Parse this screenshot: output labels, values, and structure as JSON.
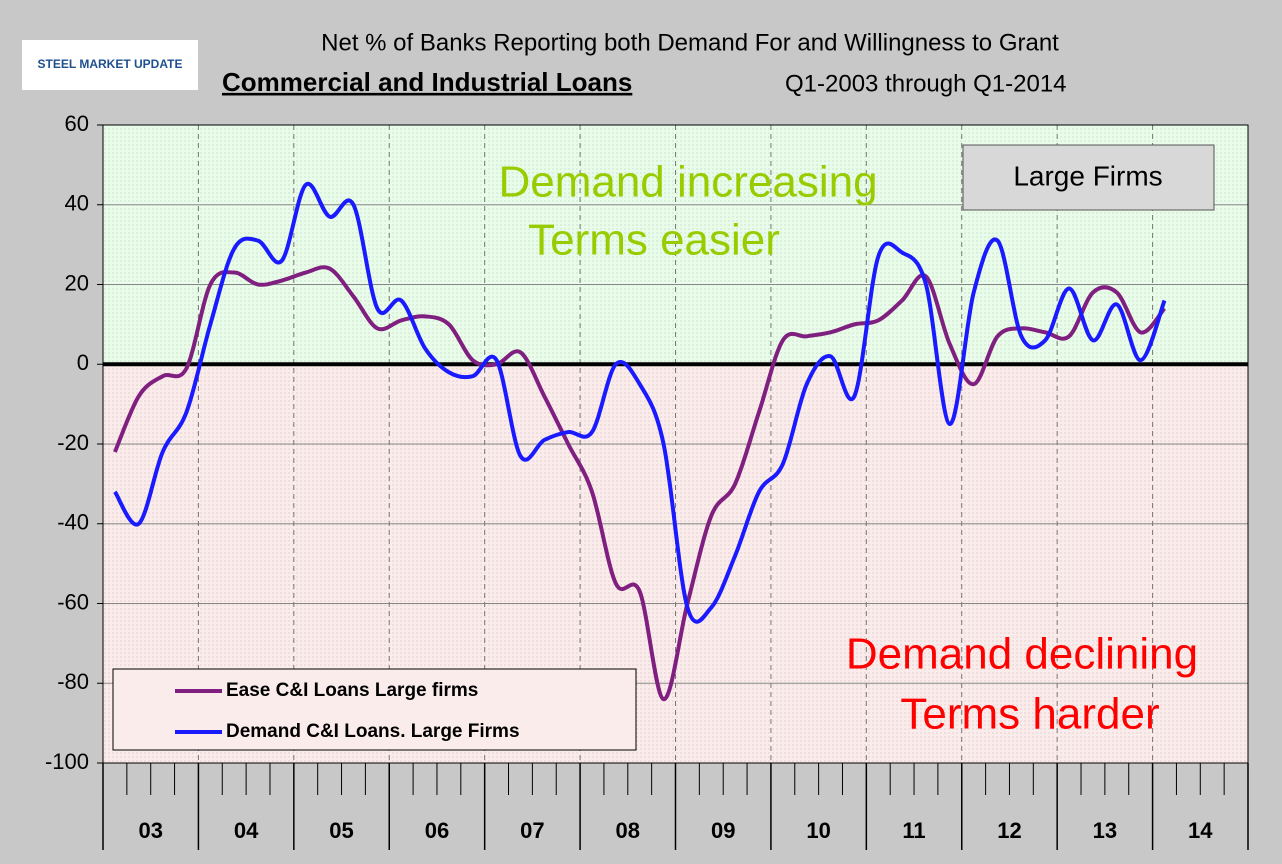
{
  "logo": "STEEL MARKET UPDATE",
  "chart_data": {
    "type": "line",
    "title": "Net % of Banks Reporting both Demand For and Willingness to Grant",
    "subtitle": "Commercial and Industrial Loans",
    "subtitle_note": "Q1-2003 through Q1-2014",
    "categories": [
      null,
      null,
      null,
      null,
      null,
      null,
      null,
      null,
      null,
      null,
      null,
      null,
      null,
      null,
      null,
      null,
      null,
      null,
      null,
      null,
      null,
      null,
      null,
      null,
      null,
      null,
      null,
      null,
      null,
      null,
      null,
      null,
      null,
      null,
      null,
      null,
      null,
      null,
      null,
      null,
      null,
      null,
      null,
      null,
      null
    ],
    "year_labels": [
      "03",
      "04",
      "05",
      "06",
      "07",
      "08",
      "09",
      "10",
      "11",
      "12",
      "13",
      "14"
    ],
    "series": [
      {
        "name": "Ease C&I Loans Large firms",
        "color": "#7f1f7f",
        "values": [
          -22,
          -8,
          -3,
          -1,
          20,
          23,
          20,
          21,
          23,
          24,
          17,
          9,
          11,
          12,
          10,
          1,
          0,
          3,
          -8,
          -20,
          -32,
          -55,
          -57,
          -84,
          -60,
          -38,
          -30,
          -12,
          6,
          7,
          8,
          10,
          11,
          16,
          22,
          5,
          -5,
          7,
          9,
          8,
          7,
          18,
          18,
          8,
          14
        ]
      },
      {
        "name": "Demand C&I Loans. Large Firms",
        "color": "#1a1aff",
        "values": [
          -32,
          -40,
          -22,
          -12,
          10,
          29,
          31,
          26,
          45,
          37,
          40,
          14,
          16,
          4,
          -2,
          -3,
          1,
          -23,
          -19,
          -17,
          -17,
          0,
          -5,
          -20,
          -61,
          -61,
          -48,
          -32,
          -25,
          -5,
          2,
          -8,
          27,
          28,
          20,
          -15,
          18,
          31,
          7,
          6,
          19,
          6,
          15,
          1,
          16
        ]
      }
    ],
    "ylim": [
      -100,
      60
    ],
    "yticks": [
      -100,
      -80,
      -60,
      -40,
      -20,
      0,
      20,
      40,
      60
    ],
    "grid": true,
    "legend": "bottom-left",
    "annotations": [
      {
        "text": "Demand increasing",
        "color": "#99cc00"
      },
      {
        "text": "Terms easier",
        "color": "#99cc00"
      },
      {
        "text": "Demand declining",
        "color": "#ff0000"
      },
      {
        "text": "Terms harder",
        "color": "#ff0000"
      }
    ],
    "box_label": "Large Firms"
  }
}
